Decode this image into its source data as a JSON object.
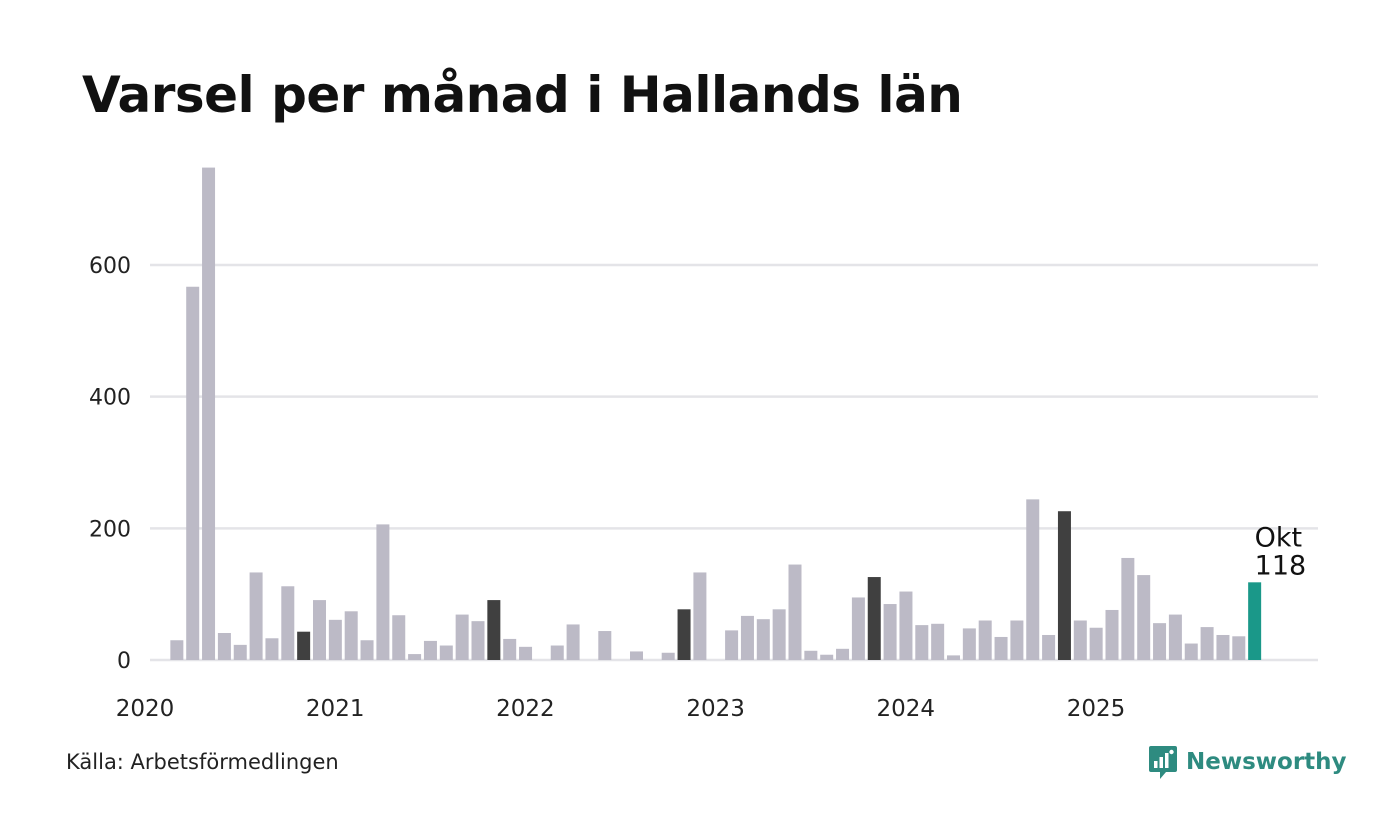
{
  "chart_data": {
    "type": "bar",
    "title": "Varsel per månad i Hallands län",
    "source": "Källa: Arbetsförmedlingen",
    "brand": "Newsworthy",
    "xlabel": "",
    "ylabel": "",
    "ylim": [
      0,
      760
    ],
    "yticks": [
      0,
      200,
      400,
      600
    ],
    "year_labels": [
      "2020",
      "2021",
      "2022",
      "2023",
      "2024",
      "2025"
    ],
    "start": "2020-01",
    "values": [
      0,
      30,
      567,
      748,
      41,
      23,
      133,
      33,
      112,
      43,
      91,
      61,
      74,
      30,
      206,
      68,
      9,
      29,
      22,
      69,
      59,
      91,
      32,
      20,
      0,
      22,
      54,
      0,
      44,
      0,
      13,
      0,
      11,
      77,
      133,
      0,
      45,
      67,
      62,
      77,
      145,
      14,
      8,
      17,
      95,
      126,
      85,
      104,
      53,
      55,
      7,
      48,
      60,
      35,
      60,
      244,
      38,
      226,
      60,
      49,
      76,
      155,
      129,
      56,
      69,
      25,
      50,
      38,
      36,
      118
    ],
    "highlight_indices": [
      9,
      21,
      33,
      45,
      57
    ],
    "current_index": 69,
    "annotation": {
      "label": "Okt",
      "value": "118"
    },
    "colors": {
      "bar": "#bcbac6",
      "highlight": "#404040",
      "current": "#1a9889",
      "grid": "#e4e4e8",
      "brand": "#2e8b80"
    }
  }
}
